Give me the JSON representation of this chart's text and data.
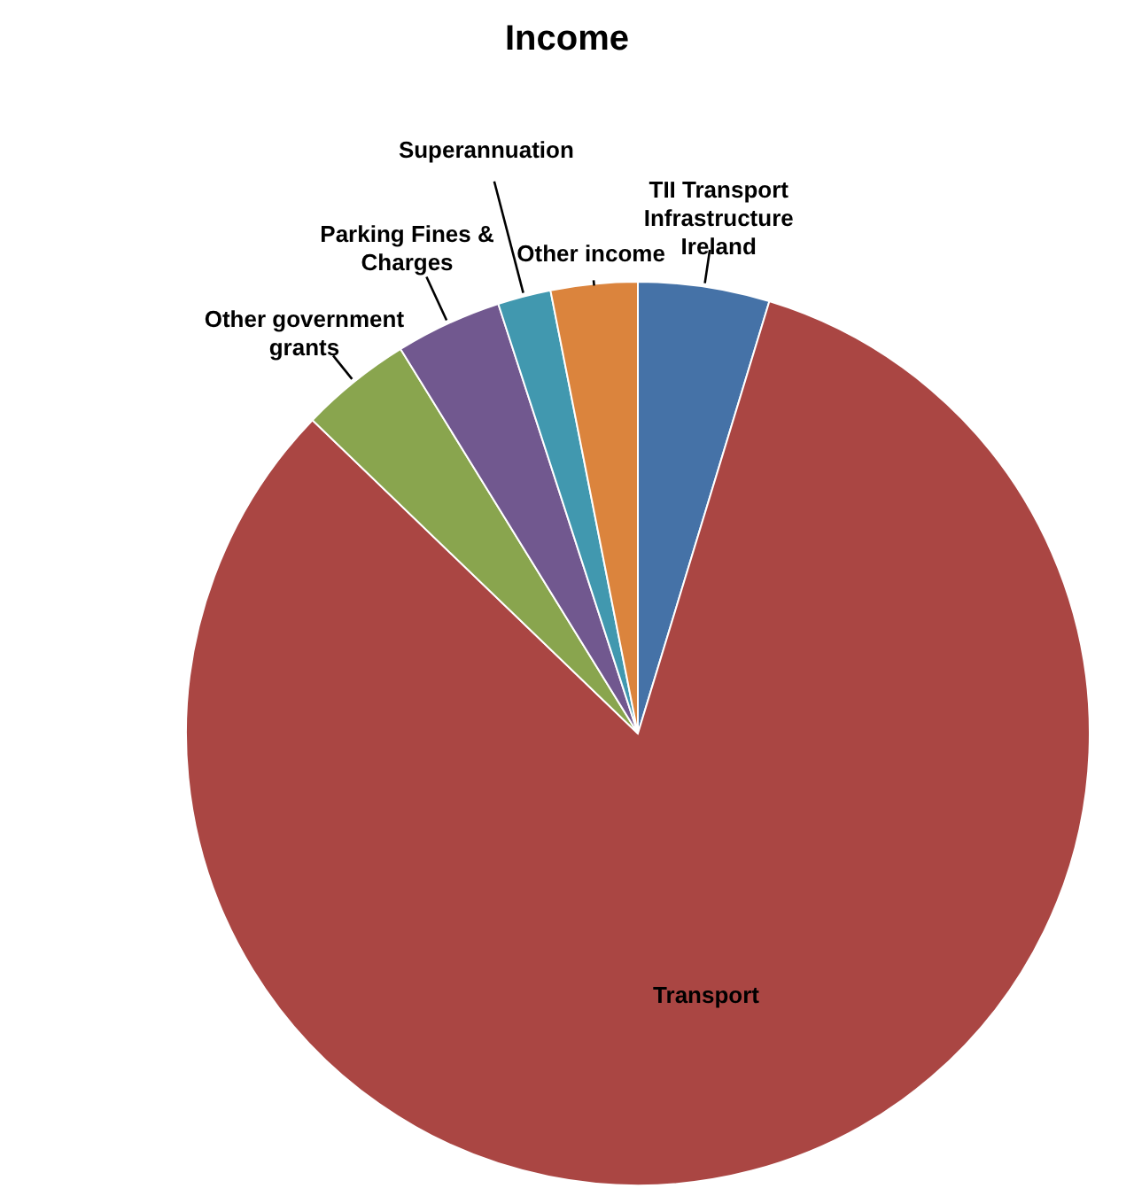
{
  "chart_data": {
    "type": "pie",
    "title": "Income",
    "categories": [
      "TII Transport Infrastructure Ireland",
      "Transport",
      "Other government grants",
      "Parking Fines & Charges",
      "Superannuation",
      "Other income"
    ],
    "values": [
      4.7,
      82.5,
      4.0,
      3.8,
      1.9,
      3.1
    ],
    "colors": [
      "#4572a7",
      "#aa4643",
      "#89a54e",
      "#71588f",
      "#4198af",
      "#db843d"
    ]
  }
}
